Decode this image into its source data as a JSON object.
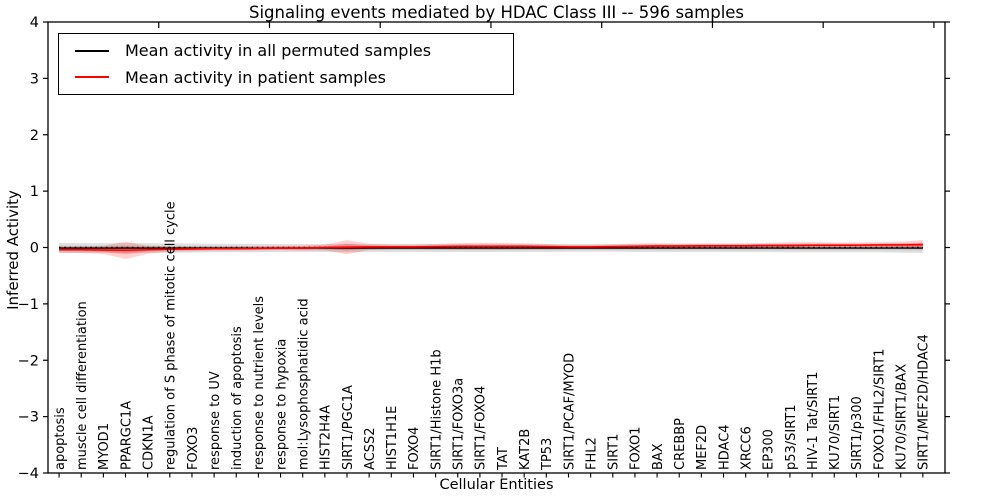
{
  "figure": {
    "title": "Signaling events mediated by HDAC Class III -- 596 samples",
    "xlabel": "Cellular Entities",
    "ylabel": "Inferred Activity"
  },
  "legend": {
    "entries": [
      {
        "label": "Mean activity in all permuted samples",
        "color": "#000000"
      },
      {
        "label": "Mean activity in patient samples",
        "color": "#ff0000"
      }
    ]
  },
  "chart_data": {
    "type": "line",
    "title": "Signaling events mediated by HDAC Class III -- 596 samples",
    "xlabel": "Cellular Entities",
    "ylabel": "Inferred Activity",
    "ylim": [
      -4,
      4
    ],
    "yticks": [
      -4,
      -3,
      -2,
      -1,
      0,
      1,
      2,
      3,
      4
    ],
    "x_major_tick_step": 5,
    "grid": false,
    "legend_position": "upper left",
    "categories": [
      "apoptosis",
      "muscle cell differentiation",
      "MYOD1",
      "PPARGC1A",
      "CDKN1A",
      "regulation of S phase of mitotic cell cycle",
      "FOXO3",
      "response to UV",
      "induction of apoptosis",
      "response to nutrient levels",
      "response to hypoxia",
      "mol:Lysophosphatidic acid",
      "HIST2H4A",
      "SIRT1/PGC1A",
      "ACSS2",
      "HIST1H1E",
      "FOXO4",
      "SIRT1/Histone H1b",
      "SIRT1/FOXO3a",
      "SIRT1/FOXO4",
      "TAT",
      "KAT2B",
      "TP53",
      "SIRT1/PCAF/MYOD",
      "FHL2",
      "SIRT1",
      "FOXO1",
      "BAX",
      "CREBBP",
      "MEF2D",
      "HDAC4",
      "XRCC6",
      "EP300",
      "p53/SIRT1",
      "HIV-1 Tat/SIRT1",
      "KU70/SIRT1",
      "SIRT1/p300",
      "FOXO1/FHL2/SIRT1",
      "KU70/SIRT1/BAX",
      "SIRT1/MEF2D/HDAC4"
    ],
    "series": [
      {
        "name": "Mean activity in all permuted samples",
        "color": "#000000",
        "values": [
          -0.01,
          -0.01,
          -0.01,
          -0.01,
          -0.01,
          -0.01,
          -0.01,
          -0.01,
          -0.01,
          -0.01,
          -0.01,
          -0.01,
          -0.01,
          -0.01,
          -0.01,
          -0.01,
          -0.01,
          -0.01,
          -0.01,
          -0.01,
          -0.01,
          -0.01,
          -0.01,
          -0.01,
          -0.01,
          -0.01,
          -0.01,
          -0.01,
          -0.01,
          -0.01,
          -0.01,
          -0.01,
          -0.01,
          -0.01,
          -0.01,
          -0.01,
          -0.01,
          -0.01,
          -0.01,
          -0.01
        ],
        "band_half_width": [
          0.09,
          0.085,
          0.085,
          0.09,
          0.085,
          0.08,
          0.08,
          0.075,
          0.075,
          0.075,
          0.07,
          0.07,
          0.07,
          0.075,
          0.07,
          0.07,
          0.07,
          0.07,
          0.07,
          0.07,
          0.07,
          0.07,
          0.07,
          0.065,
          0.065,
          0.065,
          0.07,
          0.07,
          0.07,
          0.07,
          0.07,
          0.07,
          0.07,
          0.075,
          0.075,
          0.075,
          0.075,
          0.075,
          0.08,
          0.085
        ]
      },
      {
        "name": "Mean activity in patient samples",
        "color": "#ff0000",
        "values": [
          -0.04,
          -0.04,
          -0.045,
          -0.05,
          -0.04,
          -0.03,
          -0.025,
          -0.02,
          -0.02,
          -0.015,
          -0.01,
          -0.01,
          0.0,
          0.005,
          0.01,
          0.01,
          0.01,
          0.015,
          0.02,
          0.02,
          0.02,
          0.02,
          0.015,
          0.01,
          0.01,
          0.015,
          0.02,
          0.025,
          0.025,
          0.03,
          0.03,
          0.03,
          0.035,
          0.035,
          0.04,
          0.04,
          0.04,
          0.045,
          0.045,
          0.05
        ],
        "band_half_width": [
          0.05,
          0.06,
          0.07,
          0.155,
          0.07,
          0.045,
          0.04,
          0.035,
          0.035,
          0.035,
          0.035,
          0.04,
          0.05,
          0.125,
          0.055,
          0.04,
          0.04,
          0.05,
          0.06,
          0.06,
          0.06,
          0.055,
          0.05,
          0.04,
          0.04,
          0.045,
          0.05,
          0.05,
          0.045,
          0.04,
          0.04,
          0.045,
          0.05,
          0.06,
          0.055,
          0.05,
          0.05,
          0.05,
          0.06,
          0.08
        ]
      }
    ],
    "zero_line": {
      "value": 0,
      "style": "dotted",
      "color": "#000000"
    },
    "colors": {
      "permuted_band": "#000000",
      "patient_band": "#ff0000",
      "axes": "#000000"
    }
  }
}
